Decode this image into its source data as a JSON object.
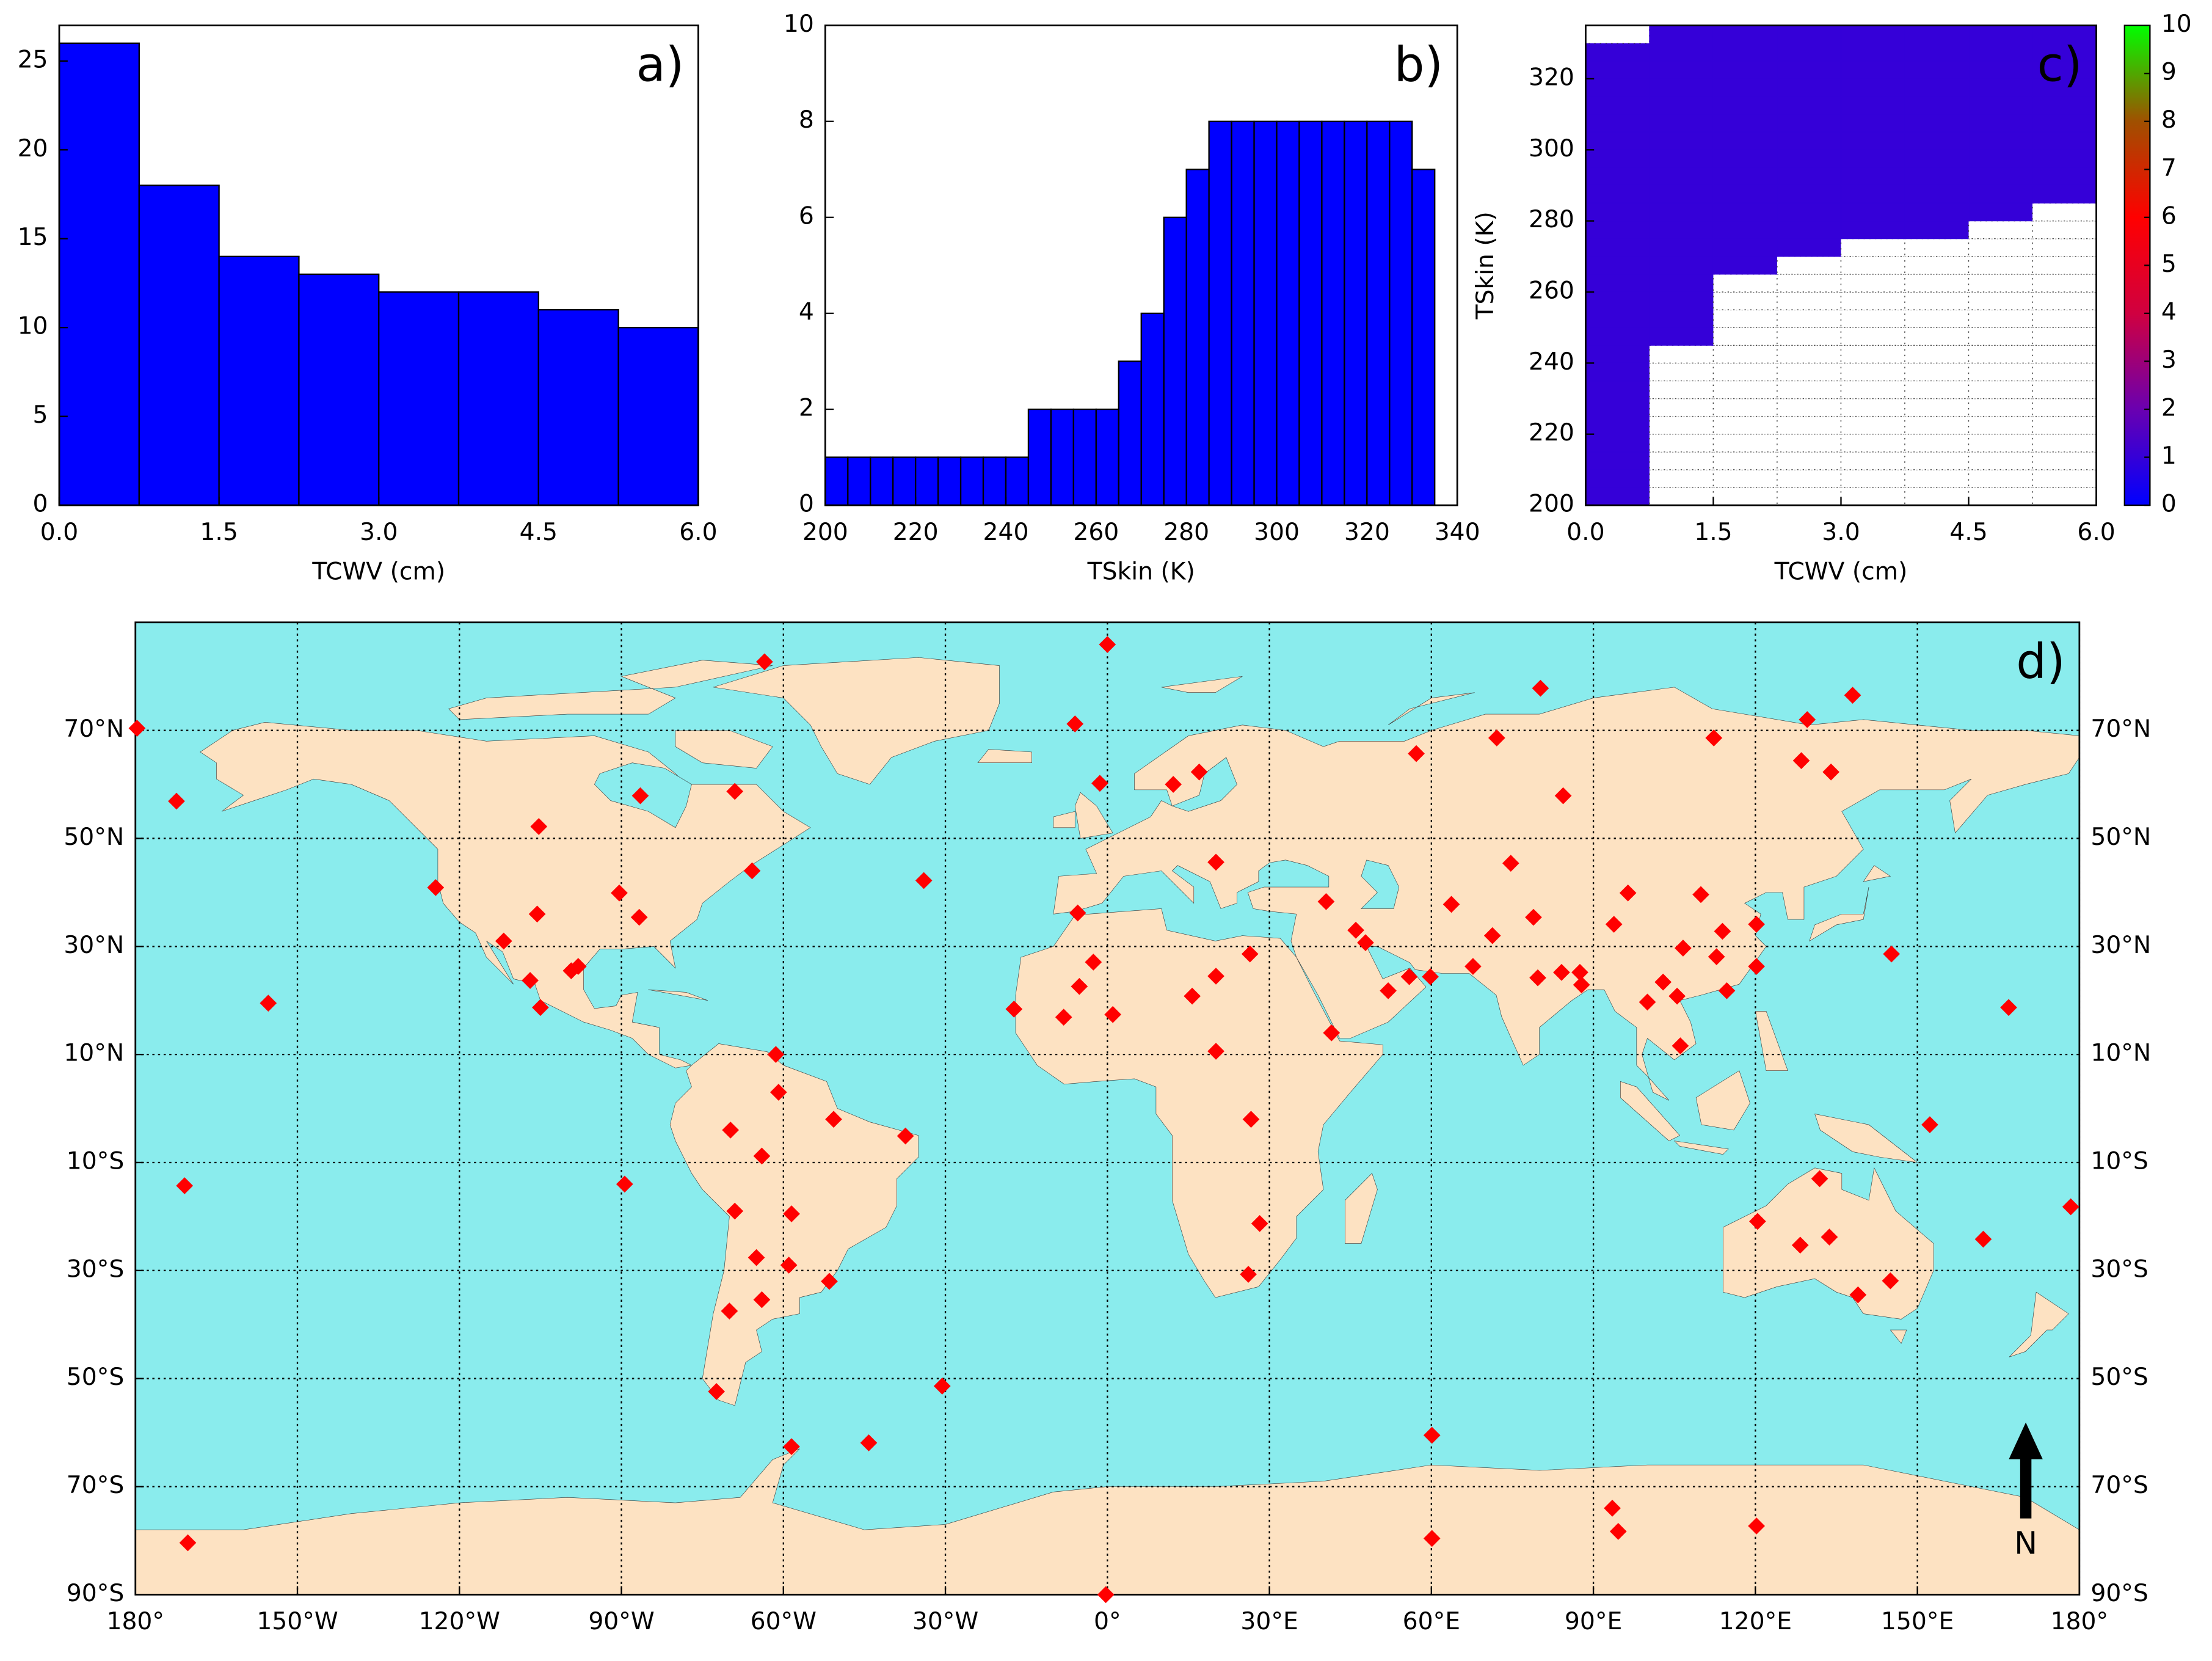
{
  "chart_data": [
    {
      "type": "histogram",
      "annotation": "a)",
      "xlabel": "TCWV (cm)",
      "color": "#0000ff",
      "bins": [
        0,
        0.75,
        1.5,
        2.25,
        3,
        3.75,
        4.5,
        5.25,
        6
      ],
      "values": [
        26,
        18,
        14,
        13,
        12,
        12,
        11,
        10
      ],
      "xlim": [
        0,
        6
      ],
      "ylim": [
        0,
        27
      ],
      "xticks": [
        {
          "value": 0,
          "label": "0.0"
        },
        1.5,
        {
          "value": 3,
          "label": "3.0"
        },
        4.5,
        {
          "value": 6,
          "label": "6.0"
        }
      ],
      "yticks": [
        0,
        5,
        10,
        15,
        20,
        25
      ]
    },
    {
      "type": "histogram",
      "annotation": "b)",
      "xlabel": "TSkin (K)",
      "color": "#0000ff",
      "bins": [
        200,
        205,
        210,
        215,
        220,
        225,
        230,
        235,
        240,
        245,
        250,
        255,
        260,
        265,
        270,
        275,
        280,
        285,
        290,
        295,
        300,
        305,
        310,
        315,
        320,
        325,
        330,
        335
      ],
      "values": [
        1,
        1,
        1,
        1,
        1,
        1,
        1,
        1,
        1,
        2,
        2,
        2,
        2,
        3,
        4,
        6,
        7,
        8,
        8,
        8,
        8,
        8,
        8,
        8,
        8,
        8,
        7
      ],
      "xlim": [
        200,
        340
      ],
      "ylim": [
        0,
        10
      ],
      "xticks": [
        200,
        220,
        240,
        260,
        280,
        300,
        320,
        340
      ],
      "yticks": [
        0,
        2,
        4,
        6,
        8,
        10
      ]
    },
    {
      "type": "heatmap",
      "annotation": "c)",
      "xlabel": "TCWV (cm)",
      "ylabel": "TSkin (K)",
      "xbins": [
        0,
        0.75,
        1.5,
        2.25,
        3,
        3.75,
        4.5,
        5.25,
        6
      ],
      "ybins": [
        200,
        205,
        210,
        215,
        220,
        225,
        230,
        235,
        240,
        245,
        250,
        255,
        260,
        265,
        270,
        275,
        280,
        285,
        290,
        295,
        300,
        305,
        310,
        315,
        320,
        325,
        330,
        335
      ],
      "z": [
        [
          1,
          0,
          0,
          0,
          0,
          0,
          0,
          0
        ],
        [
          1,
          0,
          0,
          0,
          0,
          0,
          0,
          0
        ],
        [
          1,
          0,
          0,
          0,
          0,
          0,
          0,
          0
        ],
        [
          1,
          0,
          0,
          0,
          0,
          0,
          0,
          0
        ],
        [
          1,
          0,
          0,
          0,
          0,
          0,
          0,
          0
        ],
        [
          1,
          0,
          0,
          0,
          0,
          0,
          0,
          0
        ],
        [
          1,
          0,
          0,
          0,
          0,
          0,
          0,
          0
        ],
        [
          1,
          0,
          0,
          0,
          0,
          0,
          0,
          0
        ],
        [
          1,
          0,
          0,
          0,
          0,
          0,
          0,
          0
        ],
        [
          1,
          1,
          0,
          0,
          0,
          0,
          0,
          0
        ],
        [
          1,
          1,
          0,
          0,
          0,
          0,
          0,
          0
        ],
        [
          1,
          1,
          0,
          0,
          0,
          0,
          0,
          0
        ],
        [
          1,
          1,
          0,
          0,
          0,
          0,
          0,
          0
        ],
        [
          1,
          1,
          1,
          0,
          0,
          0,
          0,
          0
        ],
        [
          1,
          1,
          1,
          1,
          0,
          0,
          0,
          0
        ],
        [
          1,
          1,
          1,
          1,
          1,
          1,
          0,
          0
        ],
        [
          1,
          1,
          1,
          1,
          1,
          1,
          1,
          0
        ],
        [
          1,
          1,
          1,
          1,
          1,
          1,
          1,
          1
        ],
        [
          1,
          1,
          1,
          1,
          1,
          1,
          1,
          1
        ],
        [
          1,
          1,
          1,
          1,
          1,
          1,
          1,
          1
        ],
        [
          1,
          1,
          1,
          1,
          1,
          1,
          1,
          1
        ],
        [
          1,
          1,
          1,
          1,
          1,
          1,
          1,
          1
        ],
        [
          1,
          1,
          1,
          1,
          1,
          1,
          1,
          1
        ],
        [
          1,
          1,
          1,
          1,
          1,
          1,
          1,
          1
        ],
        [
          1,
          1,
          1,
          1,
          1,
          1,
          1,
          1
        ],
        [
          1,
          1,
          1,
          1,
          1,
          1,
          1,
          1
        ],
        [
          0,
          1,
          1,
          1,
          1,
          1,
          1,
          1
        ]
      ],
      "xlim": [
        0,
        6
      ],
      "ylim": [
        200,
        335
      ],
      "xticks": [
        {
          "value": 0,
          "label": "0.0"
        },
        1.5,
        {
          "value": 3,
          "label": "3.0"
        },
        4.5,
        {
          "value": 6,
          "label": "6.0"
        }
      ],
      "yticks": [
        200,
        220,
        240,
        260,
        280,
        300,
        320
      ],
      "colorbar": {
        "lim": [
          0,
          10
        ],
        "ticks": [
          0,
          1,
          2,
          3,
          4,
          5,
          6,
          7,
          8,
          9,
          10
        ],
        "colors": [
          "#0000ff",
          "#6a00b0",
          "#d00040",
          "#ff0000",
          "#a05000",
          "#00ff00"
        ]
      }
    },
    {
      "type": "map",
      "annotation": "d)",
      "north_label": "N",
      "color": "#ff0000",
      "grid": true,
      "ocean_color": "#8aeced",
      "land_color": "#fde2c2",
      "x": [
        -179.7,
        -172.4,
        -155.4,
        -170.9,
        -170.3,
        -124.4,
        -105.3,
        -105.6,
        -111.8,
        -106.9,
        -105,
        -99.3,
        -98,
        -90.4,
        -86.7,
        -86.5,
        -69,
        -65.8,
        -63.5,
        -34,
        -61.4,
        -60.9,
        -50.7,
        -37.4,
        -69.8,
        -64,
        -89.4,
        -69,
        -58.5,
        -65,
        -59,
        -51.5,
        -64,
        -70,
        -72.4,
        -58.5,
        -44.2,
        -30.6,
        0,
        -6,
        -1.4,
        12.2,
        17,
        20.1,
        -5.5,
        -2.6,
        -5.2,
        -8.1,
        -17.3,
        1,
        15.7,
        20.1,
        26.4,
        20.1,
        26.6,
        28.2,
        26.1,
        -0.3,
        40.5,
        46,
        47.8,
        41.5,
        52,
        55.9,
        59.8,
        57.2,
        63.7,
        67.7,
        71.3,
        72.1,
        74.7,
        78.9,
        80.2,
        84.4,
        79.7,
        84.1,
        87.5,
        87.8,
        93.8,
        96.4,
        100,
        102.9,
        105.5,
        106.1,
        106.6,
        109.9,
        112.3,
        112.8,
        113.9,
        114.7,
        120.2,
        120.2,
        128.5,
        129.6,
        134,
        138,
        145.2,
        166.9,
        152.3,
        120.4,
        128.3,
        131.9,
        133.7,
        139,
        145,
        162.2,
        178.4,
        60.1,
        60.1,
        93.5,
        94.6,
        120.2
      ],
      "y": [
        70.4,
        56.9,
        19.5,
        -14.3,
        -80.4,
        40.9,
        52.2,
        36,
        31,
        23.7,
        18.7,
        25.5,
        26.3,
        39.9,
        35.4,
        57.9,
        58.7,
        44,
        82.7,
        42.2,
        10,
        3,
        -2,
        -5.1,
        -4,
        -8.8,
        -14,
        -19,
        -19.5,
        -27.6,
        -29,
        -32,
        -35.4,
        -37.5,
        -52.4,
        -62.6,
        -61.9,
        -51.4,
        85.9,
        71.2,
        60.2,
        60,
        62.3,
        45.6,
        36.2,
        27.1,
        22.6,
        16.9,
        18.4,
        17.4,
        20.8,
        24.5,
        28.6,
        10.6,
        -2,
        -21.3,
        -30.7,
        -90,
        38.3,
        33,
        30.7,
        14,
        21.8,
        24.4,
        24.4,
        65.7,
        37.8,
        26.3,
        32,
        68.6,
        45.4,
        35.4,
        77.8,
        57.9,
        24.2,
        25.2,
        25.2,
        22.9,
        34.1,
        39.9,
        19.7,
        23.4,
        20.8,
        11.6,
        29.7,
        39.6,
        68.6,
        28.1,
        32.8,
        21.8,
        34.1,
        26.3,
        64.4,
        72,
        62.3,
        76.5,
        28.6,
        18.7,
        -3,
        -20.9,
        -25.3,
        -13,
        -23.8,
        -34.5,
        -31.9,
        -24.2,
        -18.2,
        -60.5,
        -79.6,
        -74,
        -78.3,
        -77.3
      ],
      "xlim": [
        -180,
        180
      ],
      "ylim": [
        -90,
        90
      ],
      "xticks": [
        {
          "value": -180,
          "label": "180°"
        },
        {
          "value": -150,
          "label": "150°W"
        },
        {
          "value": -120,
          "label": "120°W"
        },
        {
          "value": -90,
          "label": "90°W"
        },
        {
          "value": -60,
          "label": "60°W"
        },
        {
          "value": -30,
          "label": "30°W"
        },
        {
          "value": 0,
          "label": "0°"
        },
        {
          "value": 30,
          "label": "30°E"
        },
        {
          "value": 60,
          "label": "60°E"
        },
        {
          "value": 90,
          "label": "90°E"
        },
        {
          "value": 120,
          "label": "120°E"
        },
        {
          "value": 150,
          "label": "150°E"
        },
        {
          "value": 180,
          "label": "180°"
        }
      ],
      "yticks": [
        {
          "value": 70,
          "label": "70°N"
        },
        {
          "value": 50,
          "label": "50°N"
        },
        {
          "value": 30,
          "label": "30°N"
        },
        {
          "value": 10,
          "label": "10°N"
        },
        {
          "value": -10,
          "label": "10°S"
        },
        {
          "value": -30,
          "label": "30°S"
        },
        {
          "value": -50,
          "label": "50°S"
        },
        {
          "value": -70,
          "label": "70°S"
        },
        {
          "value": -90,
          "label": "90°S"
        }
      ]
    }
  ]
}
